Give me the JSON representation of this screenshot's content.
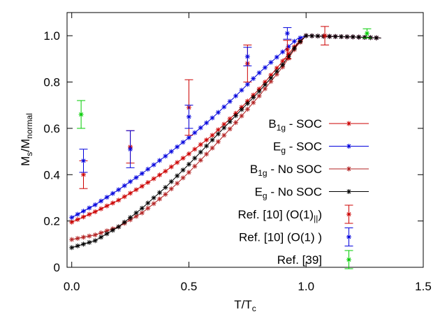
{
  "chart_data": {
    "type": "scatter",
    "xlabel": "T/T",
    "xlabel_sub": "c",
    "ylabel": "M",
    "ylabel_sub1": "s",
    "ylabel_mid": "/M",
    "ylabel_sub2": "normal",
    "xlim": [
      -0.02,
      1.5
    ],
    "ylim": [
      0,
      1.1
    ],
    "xticks": [
      0.0,
      0.5,
      1.0,
      1.5
    ],
    "xtick_labels": [
      "0.0",
      "0.5",
      "1.0",
      "1.5"
    ],
    "yticks": [
      0,
      0.2,
      0.4,
      0.6,
      0.8,
      1.0
    ],
    "ytick_labels": [
      "0",
      "0.2",
      "0.4",
      "0.6",
      "0.8",
      "1.0"
    ],
    "grid": false,
    "legend_position": "right",
    "series": [
      {
        "name": "B1g - SOC",
        "legend": {
          "base": "B",
          "sub": "1g",
          "rest": " - SOC"
        },
        "color": "#cc0000",
        "marker": "star-line",
        "x": [
          0.0,
          0.1,
          0.2,
          0.3,
          0.4,
          0.5,
          0.6,
          0.7,
          0.8,
          0.9,
          0.96,
          1.0,
          1.1,
          1.2,
          1.32
        ],
        "y": [
          0.195,
          0.24,
          0.29,
          0.35,
          0.415,
          0.49,
          0.57,
          0.665,
          0.77,
          0.89,
          0.965,
          1.0,
          0.997,
          0.995,
          0.99
        ]
      },
      {
        "name": "Eg - SOC",
        "legend": {
          "base": "E",
          "sub": "g",
          "rest": " - SOC"
        },
        "color": "#0000dd",
        "marker": "star-line",
        "x": [
          0.0,
          0.1,
          0.2,
          0.3,
          0.4,
          0.5,
          0.6,
          0.7,
          0.8,
          0.9,
          0.96,
          1.0,
          1.1,
          1.2,
          1.32
        ],
        "y": [
          0.215,
          0.27,
          0.335,
          0.405,
          0.48,
          0.56,
          0.645,
          0.74,
          0.84,
          0.93,
          0.985,
          1.0,
          0.997,
          0.995,
          0.99
        ]
      },
      {
        "name": "B1g - No SOC",
        "legend": {
          "base": "B",
          "sub": "1g",
          "rest": " - No SOC"
        },
        "color": "#b22222",
        "marker": "star-line",
        "x": [
          0.0,
          0.1,
          0.2,
          0.3,
          0.4,
          0.5,
          0.6,
          0.7,
          0.8,
          0.9,
          0.96,
          1.0,
          1.1,
          1.2,
          1.32
        ],
        "y": [
          0.12,
          0.14,
          0.175,
          0.235,
          0.315,
          0.41,
          0.515,
          0.625,
          0.74,
          0.865,
          0.955,
          1.0,
          0.997,
          0.995,
          0.99
        ]
      },
      {
        "name": "Eg - No SOC",
        "legend": {
          "base": "E",
          "sub": "g",
          "rest": " - No SOC"
        },
        "color": "#000000",
        "marker": "star-line",
        "x": [
          0.0,
          0.1,
          0.2,
          0.3,
          0.4,
          0.5,
          0.6,
          0.7,
          0.8,
          0.9,
          0.96,
          1.0,
          1.1,
          1.2,
          1.32
        ],
        "y": [
          0.085,
          0.115,
          0.175,
          0.255,
          0.345,
          0.445,
          0.55,
          0.655,
          0.76,
          0.875,
          0.96,
          1.0,
          0.997,
          0.995,
          0.99
        ]
      },
      {
        "name": "Ref. [10] (O(1)||)",
        "legend": {
          "base": "Ref. [10] (O(1)",
          "sub": "||",
          "rest": ")"
        },
        "color": "#cc0000",
        "marker": "star-errorbar",
        "points": [
          {
            "x": 0.05,
            "y": 0.4,
            "err": 0.06
          },
          {
            "x": 0.25,
            "y": 0.52,
            "err": 0.07
          },
          {
            "x": 0.5,
            "y": 0.69,
            "err": 0.12
          },
          {
            "x": 0.75,
            "y": 0.88,
            "err": 0.08
          },
          {
            "x": 0.92,
            "y": 0.94,
            "err": 0.04
          },
          {
            "x": 1.08,
            "y": 1.0,
            "err": 0.04
          }
        ]
      },
      {
        "name": "Ref. [10] (O(1) )",
        "legend": {
          "base": "Ref. [10] (O(1) )",
          "sub": "",
          "rest": ""
        },
        "color": "#0000dd",
        "marker": "star-errorbar",
        "points": [
          {
            "x": 0.05,
            "y": 0.46,
            "err": 0.05
          },
          {
            "x": 0.25,
            "y": 0.51,
            "err": 0.08
          },
          {
            "x": 0.5,
            "y": 0.65,
            "err": 0.05
          },
          {
            "x": 0.75,
            "y": 0.91,
            "err": 0.04
          },
          {
            "x": 0.92,
            "y": 1.01,
            "err": 0.025
          }
        ]
      },
      {
        "name": "Ref. [39]",
        "legend": {
          "base": "Ref. [39]",
          "sub": "",
          "rest": ""
        },
        "color": "#00cc00",
        "marker": "star-errorbar",
        "points": [
          {
            "x": 0.04,
            "y": 0.66,
            "err": 0.06
          },
          {
            "x": 1.26,
            "y": 1.01,
            "err": 0.02
          }
        ]
      }
    ]
  }
}
